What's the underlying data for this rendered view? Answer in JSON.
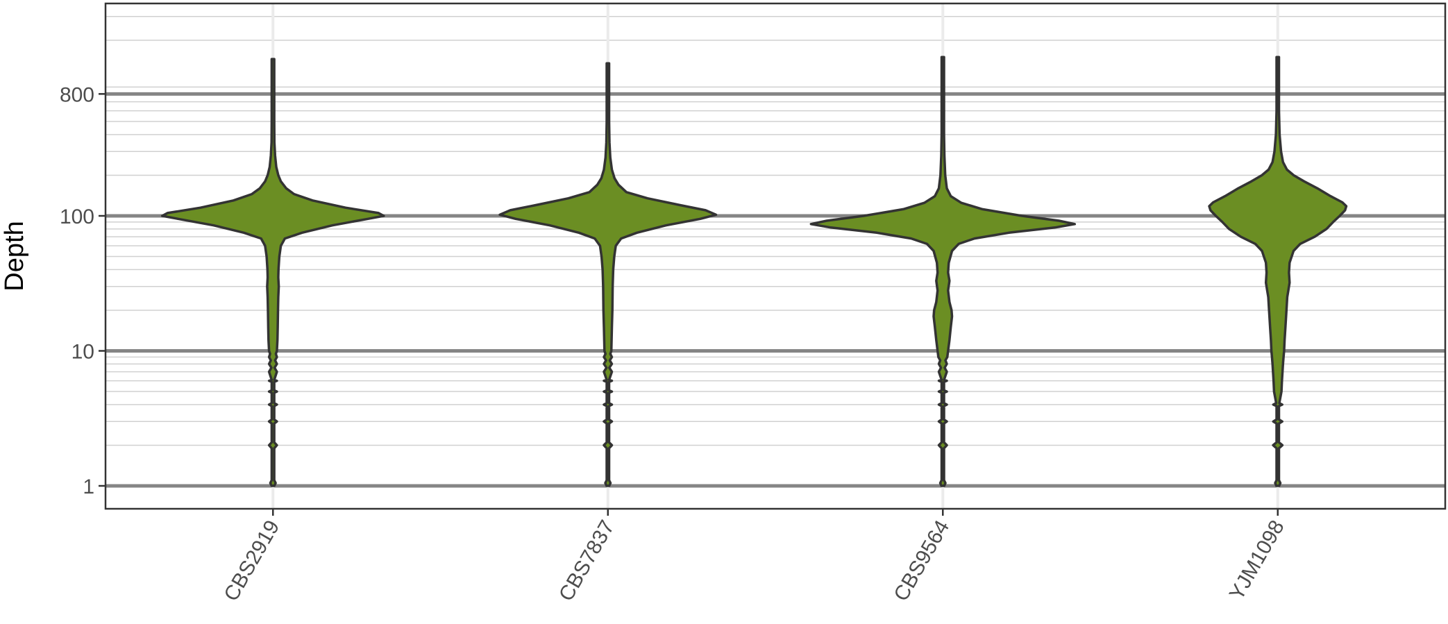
{
  "chart_data": {
    "type": "violin",
    "title": "",
    "xlabel": "",
    "ylabel": "Depth",
    "y_scale": "log10",
    "ylim": [
      0.8,
      2000
    ],
    "y_ticks": [
      1,
      10,
      100,
      800
    ],
    "y_tick_labels": [
      "1",
      "10",
      "100",
      "800"
    ],
    "grid": true,
    "legend": "none",
    "fill_color": "#6B8E23",
    "outline_color": "#333333",
    "categories": [
      "CBS2919",
      "CBS7837",
      "CBS9564",
      "YJM1098"
    ],
    "violins": [
      {
        "category": "CBS2919",
        "min": 1,
        "max": 1450,
        "mode_depth": 102,
        "profile": [
          [
            1,
            0.01
          ],
          [
            1.05,
            0.02
          ],
          [
            1.1,
            0.003
          ],
          [
            1.9,
            0.003
          ],
          [
            2,
            0.03
          ],
          [
            2.1,
            0.003
          ],
          [
            2.9,
            0.004
          ],
          [
            3,
            0.03
          ],
          [
            3.1,
            0.004
          ],
          [
            3.9,
            0.005
          ],
          [
            4,
            0.03
          ],
          [
            4.1,
            0.005
          ],
          [
            4.9,
            0.006
          ],
          [
            5,
            0.03
          ],
          [
            5.1,
            0.006
          ],
          [
            5.9,
            0.007
          ],
          [
            6,
            0.03
          ],
          [
            6.1,
            0.008
          ],
          [
            7,
            0.03
          ],
          [
            7.5,
            0.012
          ],
          [
            8,
            0.03
          ],
          [
            8.5,
            0.016
          ],
          [
            9,
            0.03
          ],
          [
            9.5,
            0.022
          ],
          [
            10,
            0.03
          ],
          [
            12,
            0.034
          ],
          [
            15,
            0.036
          ],
          [
            20,
            0.038
          ],
          [
            25,
            0.04
          ],
          [
            30,
            0.044
          ],
          [
            35,
            0.04
          ],
          [
            40,
            0.042
          ],
          [
            50,
            0.048
          ],
          [
            60,
            0.06
          ],
          [
            68,
            0.09
          ],
          [
            75,
            0.22
          ],
          [
            85,
            0.45
          ],
          [
            95,
            0.72
          ],
          [
            100,
            0.84
          ],
          [
            105,
            0.8
          ],
          [
            115,
            0.55
          ],
          [
            130,
            0.3
          ],
          [
            145,
            0.16
          ],
          [
            160,
            0.1
          ],
          [
            180,
            0.06
          ],
          [
            200,
            0.04
          ],
          [
            230,
            0.025
          ],
          [
            280,
            0.016
          ],
          [
            350,
            0.011
          ],
          [
            500,
            0.008
          ],
          [
            800,
            0.006
          ],
          [
            1200,
            0.005
          ],
          [
            1450,
            0.004
          ]
        ]
      },
      {
        "category": "CBS7837",
        "min": 1,
        "max": 1350,
        "mode_depth": 103,
        "profile": [
          [
            1,
            0.01
          ],
          [
            1.05,
            0.02
          ],
          [
            1.1,
            0.003
          ],
          [
            1.9,
            0.003
          ],
          [
            2,
            0.03
          ],
          [
            2.1,
            0.003
          ],
          [
            2.9,
            0.004
          ],
          [
            3,
            0.03
          ],
          [
            3.1,
            0.004
          ],
          [
            3.9,
            0.005
          ],
          [
            4,
            0.03
          ],
          [
            4.1,
            0.005
          ],
          [
            4.9,
            0.006
          ],
          [
            5,
            0.03
          ],
          [
            5.1,
            0.006
          ],
          [
            5.9,
            0.007
          ],
          [
            6,
            0.03
          ],
          [
            6.1,
            0.008
          ],
          [
            7,
            0.03
          ],
          [
            7.5,
            0.011
          ],
          [
            8,
            0.03
          ],
          [
            8.5,
            0.014
          ],
          [
            9,
            0.03
          ],
          [
            9.5,
            0.018
          ],
          [
            10,
            0.026
          ],
          [
            15,
            0.03
          ],
          [
            20,
            0.034
          ],
          [
            30,
            0.036
          ],
          [
            40,
            0.04
          ],
          [
            50,
            0.048
          ],
          [
            60,
            0.06
          ],
          [
            68,
            0.1
          ],
          [
            75,
            0.22
          ],
          [
            85,
            0.44
          ],
          [
            95,
            0.7
          ],
          [
            102,
            0.82
          ],
          [
            110,
            0.74
          ],
          [
            120,
            0.55
          ],
          [
            135,
            0.3
          ],
          [
            150,
            0.14
          ],
          [
            170,
            0.08
          ],
          [
            190,
            0.05
          ],
          [
            220,
            0.03
          ],
          [
            270,
            0.018
          ],
          [
            350,
            0.012
          ],
          [
            500,
            0.008
          ],
          [
            800,
            0.006
          ],
          [
            1100,
            0.005
          ],
          [
            1350,
            0.004
          ]
        ]
      },
      {
        "category": "CBS9564",
        "min": 1,
        "max": 1500,
        "mode_depth": 87,
        "profile": [
          [
            1,
            0.01
          ],
          [
            1.05,
            0.02
          ],
          [
            1.1,
            0.003
          ],
          [
            1.9,
            0.003
          ],
          [
            2,
            0.03
          ],
          [
            2.1,
            0.003
          ],
          [
            2.9,
            0.004
          ],
          [
            3,
            0.03
          ],
          [
            3.1,
            0.004
          ],
          [
            3.9,
            0.005
          ],
          [
            4,
            0.03
          ],
          [
            4.1,
            0.005
          ],
          [
            4.9,
            0.006
          ],
          [
            5,
            0.03
          ],
          [
            5.1,
            0.006
          ],
          [
            5.9,
            0.007
          ],
          [
            6,
            0.03
          ],
          [
            6.1,
            0.008
          ],
          [
            7,
            0.03
          ],
          [
            7.5,
            0.014
          ],
          [
            8,
            0.03
          ],
          [
            8.5,
            0.02
          ],
          [
            9,
            0.034
          ],
          [
            10,
            0.04
          ],
          [
            12,
            0.05
          ],
          [
            15,
            0.06
          ],
          [
            18,
            0.07
          ],
          [
            20,
            0.066
          ],
          [
            23,
            0.05
          ],
          [
            28,
            0.04
          ],
          [
            33,
            0.05
          ],
          [
            38,
            0.04
          ],
          [
            45,
            0.045
          ],
          [
            55,
            0.07
          ],
          [
            62,
            0.12
          ],
          [
            68,
            0.24
          ],
          [
            75,
            0.5
          ],
          [
            82,
            0.85
          ],
          [
            87,
            1.0
          ],
          [
            92,
            0.88
          ],
          [
            100,
            0.6
          ],
          [
            112,
            0.3
          ],
          [
            125,
            0.14
          ],
          [
            140,
            0.06
          ],
          [
            160,
            0.03
          ],
          [
            200,
            0.018
          ],
          [
            280,
            0.012
          ],
          [
            400,
            0.009
          ],
          [
            700,
            0.007
          ],
          [
            1100,
            0.005
          ],
          [
            1500,
            0.004
          ]
        ]
      },
      {
        "category": "YJM1098",
        "min": 1,
        "max": 1500,
        "mode_depth": 118,
        "profile": [
          [
            1,
            0.01
          ],
          [
            1.05,
            0.02
          ],
          [
            1.1,
            0.003
          ],
          [
            1.9,
            0.005
          ],
          [
            2,
            0.035
          ],
          [
            2.1,
            0.005
          ],
          [
            2.9,
            0.006
          ],
          [
            3,
            0.034
          ],
          [
            3.1,
            0.007
          ],
          [
            3.9,
            0.009
          ],
          [
            4,
            0.034
          ],
          [
            4.1,
            0.012
          ],
          [
            5,
            0.028
          ],
          [
            6,
            0.032
          ],
          [
            7,
            0.036
          ],
          [
            8,
            0.04
          ],
          [
            9,
            0.044
          ],
          [
            10,
            0.048
          ],
          [
            12,
            0.052
          ],
          [
            15,
            0.058
          ],
          [
            20,
            0.066
          ],
          [
            25,
            0.072
          ],
          [
            28,
            0.08
          ],
          [
            32,
            0.09
          ],
          [
            38,
            0.085
          ],
          [
            45,
            0.09
          ],
          [
            55,
            0.12
          ],
          [
            62,
            0.17
          ],
          [
            70,
            0.28
          ],
          [
            80,
            0.37
          ],
          [
            90,
            0.42
          ],
          [
            100,
            0.47
          ],
          [
            110,
            0.51
          ],
          [
            118,
            0.52
          ],
          [
            126,
            0.49
          ],
          [
            140,
            0.4
          ],
          [
            160,
            0.3
          ],
          [
            180,
            0.2
          ],
          [
            200,
            0.12
          ],
          [
            220,
            0.07
          ],
          [
            250,
            0.04
          ],
          [
            300,
            0.025
          ],
          [
            400,
            0.014
          ],
          [
            600,
            0.009
          ],
          [
            900,
            0.007
          ],
          [
            1200,
            0.005
          ],
          [
            1500,
            0.004
          ]
        ]
      }
    ]
  }
}
